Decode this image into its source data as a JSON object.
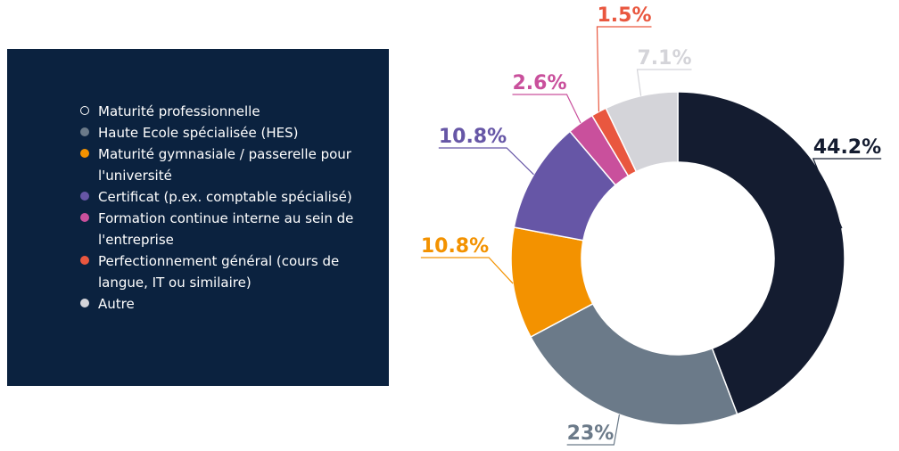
{
  "chart_data": {
    "type": "pie",
    "donut": true,
    "categories": [
      "Maturité professionnelle",
      "Haute Ecole spécialisée (HES)",
      "Maturité gymnasiale / passerelle pour l'université",
      "Certificat (p.ex. comptable spécialisé)",
      "Formation continue interne au sein de l'entreprise",
      "Perfectionnement général (cours de langue, IT ou similaire)",
      "Autre"
    ],
    "values": [
      44.2,
      23,
      10.8,
      10.8,
      2.6,
      1.5,
      7.1
    ],
    "value_labels": [
      "44.2%",
      "23%",
      "10.8%",
      "10.8%",
      "2.6%",
      "1.5%",
      "7.1%"
    ],
    "colors": [
      "#141c30",
      "#6b7a89",
      "#f39200",
      "#6656a6",
      "#c9509c",
      "#e9573f",
      "#d4d4d9"
    ],
    "label_colors": [
      "#141c30",
      "#6b7a89",
      "#f39200",
      "#6656a6",
      "#c9509c",
      "#e9573f",
      "#d4d4d9"
    ]
  }
}
